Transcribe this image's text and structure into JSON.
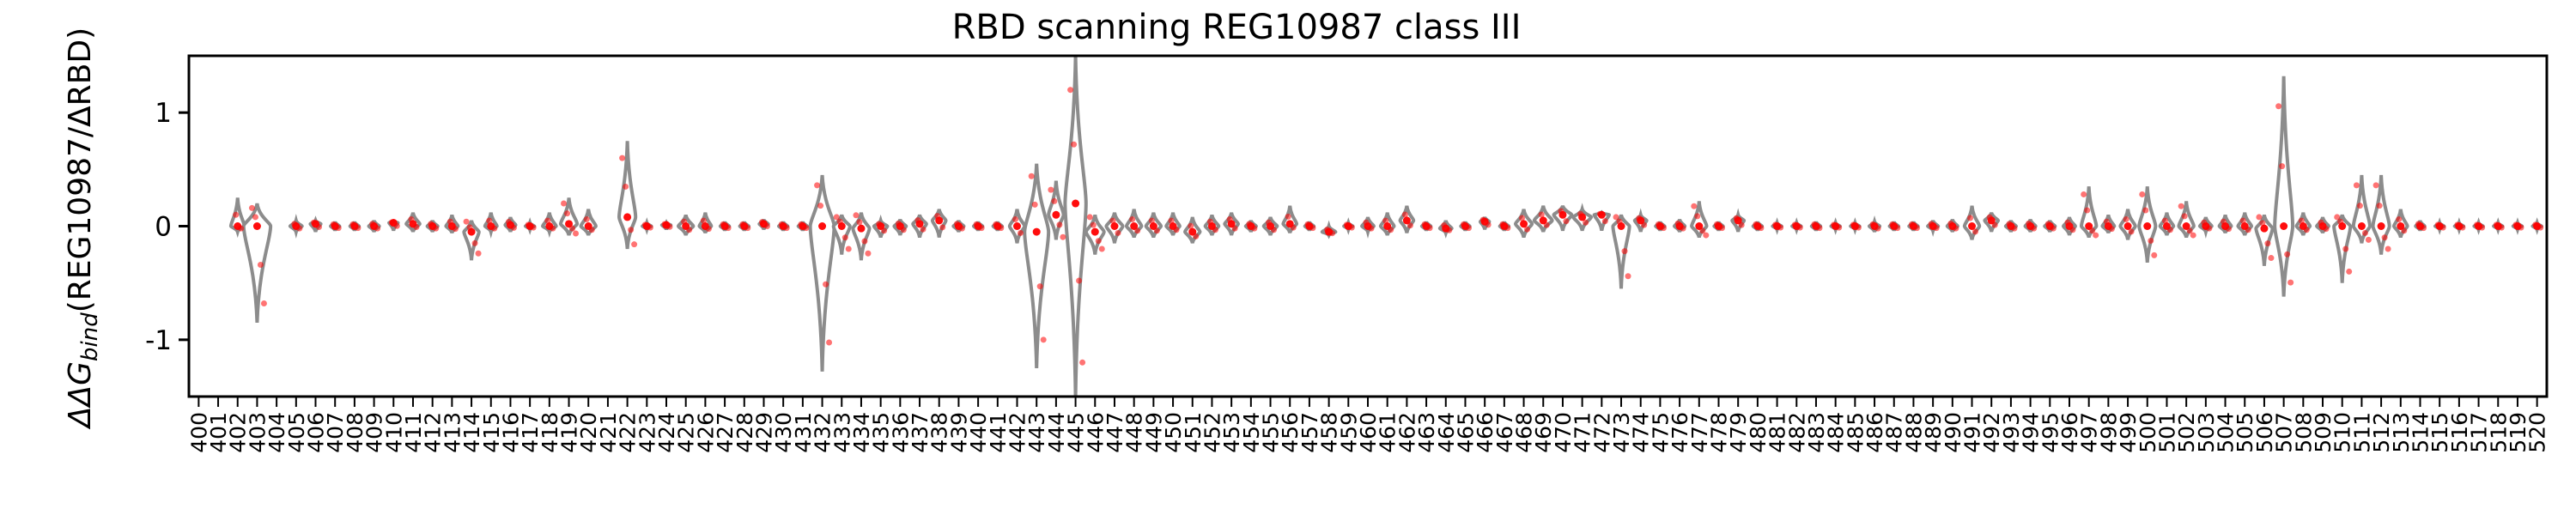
{
  "chart_data": {
    "type": "violin",
    "title": "RBD scanning REG10987 class III",
    "ylabel_prefix": "ΔΔG",
    "ylabel_sub": "bind",
    "ylabel_suffix": "(REG10987/ΔRBD)",
    "ylim": [
      -1.5,
      1.5
    ],
    "yticks": [
      -1,
      0,
      1
    ],
    "x_start": 400,
    "x_end": 520,
    "violin_color": "#8c8c8c",
    "point_color": "#ff0000",
    "sites": [
      {
        "site": 402,
        "min": -0.05,
        "max": 0.25,
        "center": 0.0,
        "width": 0.45
      },
      {
        "site": 403,
        "min": -0.85,
        "max": 0.2,
        "center": 0.0,
        "width": 0.9
      },
      {
        "site": 405,
        "min": -0.05,
        "max": 0.05,
        "center": 0.0,
        "width": 0.4
      },
      {
        "site": 406,
        "min": -0.05,
        "max": 0.05,
        "center": 0.02,
        "width": 0.35
      },
      {
        "site": 407,
        "min": -0.04,
        "max": 0.04,
        "center": 0.0,
        "width": 0.3
      },
      {
        "site": 408,
        "min": -0.04,
        "max": 0.04,
        "center": 0.0,
        "width": 0.3
      },
      {
        "site": 409,
        "min": -0.05,
        "max": 0.05,
        "center": 0.0,
        "width": 0.35
      },
      {
        "site": 410,
        "min": -0.04,
        "max": 0.04,
        "center": 0.03,
        "width": 0.3
      },
      {
        "site": 411,
        "min": -0.05,
        "max": 0.12,
        "center": 0.02,
        "width": 0.45
      },
      {
        "site": 412,
        "min": -0.05,
        "max": 0.05,
        "center": 0.0,
        "width": 0.35
      },
      {
        "site": 413,
        "min": -0.06,
        "max": 0.1,
        "center": 0.0,
        "width": 0.4
      },
      {
        "site": 414,
        "min": -0.3,
        "max": 0.05,
        "center": -0.05,
        "width": 0.5
      },
      {
        "site": 415,
        "min": -0.05,
        "max": 0.12,
        "center": 0.0,
        "width": 0.4
      },
      {
        "site": 416,
        "min": -0.05,
        "max": 0.08,
        "center": 0.01,
        "width": 0.35
      },
      {
        "site": 417,
        "min": -0.03,
        "max": 0.03,
        "center": 0.0,
        "width": 0.3
      },
      {
        "site": 418,
        "min": -0.05,
        "max": 0.12,
        "center": 0.0,
        "width": 0.45
      },
      {
        "site": 419,
        "min": -0.08,
        "max": 0.25,
        "center": 0.02,
        "width": 0.55
      },
      {
        "site": 420,
        "min": -0.08,
        "max": 0.15,
        "center": 0.0,
        "width": 0.5
      },
      {
        "site": 422,
        "min": -0.2,
        "max": 0.75,
        "center": 0.08,
        "width": 0.55
      },
      {
        "site": 423,
        "min": -0.03,
        "max": 0.03,
        "center": 0.0,
        "width": 0.3
      },
      {
        "site": 424,
        "min": -0.03,
        "max": 0.03,
        "center": 0.01,
        "width": 0.3
      },
      {
        "site": 425,
        "min": -0.08,
        "max": 0.1,
        "center": 0.0,
        "width": 0.5
      },
      {
        "site": 426,
        "min": -0.06,
        "max": 0.12,
        "center": 0.0,
        "width": 0.4
      },
      {
        "site": 427,
        "min": -0.04,
        "max": 0.04,
        "center": 0.0,
        "width": 0.3
      },
      {
        "site": 428,
        "min": -0.04,
        "max": 0.04,
        "center": 0.0,
        "width": 0.3
      },
      {
        "site": 429,
        "min": -0.03,
        "max": 0.06,
        "center": 0.02,
        "width": 0.3
      },
      {
        "site": 430,
        "min": -0.04,
        "max": 0.04,
        "center": 0.0,
        "width": 0.3
      },
      {
        "site": 431,
        "min": -0.04,
        "max": 0.04,
        "center": 0.0,
        "width": 0.3
      },
      {
        "site": 432,
        "min": -1.28,
        "max": 0.45,
        "center": 0.0,
        "width": 0.8
      },
      {
        "site": 433,
        "min": -0.25,
        "max": 0.1,
        "center": 0.0,
        "width": 0.55
      },
      {
        "site": 434,
        "min": -0.3,
        "max": 0.12,
        "center": -0.02,
        "width": 0.55
      },
      {
        "site": 435,
        "min": -0.1,
        "max": 0.05,
        "center": 0.0,
        "width": 0.45
      },
      {
        "site": 436,
        "min": -0.08,
        "max": 0.06,
        "center": 0.0,
        "width": 0.4
      },
      {
        "site": 437,
        "min": -0.1,
        "max": 0.1,
        "center": 0.02,
        "width": 0.45
      },
      {
        "site": 438,
        "min": -0.1,
        "max": 0.15,
        "center": 0.05,
        "width": 0.45
      },
      {
        "site": 439,
        "min": -0.05,
        "max": 0.05,
        "center": 0.0,
        "width": 0.35
      },
      {
        "site": 440,
        "min": -0.04,
        "max": 0.04,
        "center": 0.0,
        "width": 0.3
      },
      {
        "site": 441,
        "min": -0.04,
        "max": 0.04,
        "center": 0.0,
        "width": 0.3
      },
      {
        "site": 442,
        "min": -0.15,
        "max": 0.15,
        "center": 0.0,
        "width": 0.5
      },
      {
        "site": 443,
        "min": -1.25,
        "max": 0.55,
        "center": -0.05,
        "width": 0.8
      },
      {
        "site": 444,
        "min": -0.12,
        "max": 0.4,
        "center": 0.1,
        "width": 0.5
      },
      {
        "site": 445,
        "min": -1.5,
        "max": 1.5,
        "center": 0.2,
        "width": 0.7
      },
      {
        "site": 446,
        "min": -0.25,
        "max": 0.1,
        "center": -0.05,
        "width": 0.6
      },
      {
        "site": 447,
        "min": -0.15,
        "max": 0.12,
        "center": 0.0,
        "width": 0.55
      },
      {
        "site": 448,
        "min": -0.1,
        "max": 0.15,
        "center": 0.0,
        "width": 0.5
      },
      {
        "site": 449,
        "min": -0.1,
        "max": 0.12,
        "center": 0.0,
        "width": 0.5
      },
      {
        "site": 450,
        "min": -0.08,
        "max": 0.12,
        "center": 0.0,
        "width": 0.45
      },
      {
        "site": 451,
        "min": -0.15,
        "max": 0.08,
        "center": -0.05,
        "width": 0.5
      },
      {
        "site": 452,
        "min": -0.08,
        "max": 0.1,
        "center": 0.0,
        "width": 0.45
      },
      {
        "site": 453,
        "min": -0.08,
        "max": 0.12,
        "center": 0.02,
        "width": 0.45
      },
      {
        "site": 454,
        "min": -0.05,
        "max": 0.05,
        "center": 0.0,
        "width": 0.35
      },
      {
        "site": 455,
        "min": -0.08,
        "max": 0.08,
        "center": 0.0,
        "width": 0.45
      },
      {
        "site": 456,
        "min": -0.06,
        "max": 0.18,
        "center": 0.02,
        "width": 0.45
      },
      {
        "site": 457,
        "min": -0.04,
        "max": 0.04,
        "center": 0.0,
        "width": 0.3
      },
      {
        "site": 458,
        "min": -0.08,
        "max": 0.0,
        "center": -0.05,
        "width": 0.45
      },
      {
        "site": 459,
        "min": -0.03,
        "max": 0.03,
        "center": 0.0,
        "width": 0.3
      },
      {
        "site": 460,
        "min": -0.05,
        "max": 0.08,
        "center": 0.0,
        "width": 0.4
      },
      {
        "site": 461,
        "min": -0.08,
        "max": 0.12,
        "center": 0.0,
        "width": 0.45
      },
      {
        "site": 462,
        "min": -0.06,
        "max": 0.18,
        "center": 0.05,
        "width": 0.45
      },
      {
        "site": 463,
        "min": -0.04,
        "max": 0.04,
        "center": 0.0,
        "width": 0.3
      },
      {
        "site": 464,
        "min": -0.06,
        "max": 0.05,
        "center": -0.02,
        "width": 0.4
      },
      {
        "site": 465,
        "min": -0.04,
        "max": 0.04,
        "center": 0.0,
        "width": 0.3
      },
      {
        "site": 466,
        "min": -0.03,
        "max": 0.08,
        "center": 0.04,
        "width": 0.3
      },
      {
        "site": 467,
        "min": -0.04,
        "max": 0.04,
        "center": 0.0,
        "width": 0.3
      },
      {
        "site": 468,
        "min": -0.1,
        "max": 0.15,
        "center": 0.02,
        "width": 0.55
      },
      {
        "site": 469,
        "min": -0.05,
        "max": 0.18,
        "center": 0.05,
        "width": 0.6
      },
      {
        "site": 470,
        "min": -0.04,
        "max": 0.18,
        "center": 0.1,
        "width": 0.6
      },
      {
        "site": 471,
        "min": -0.04,
        "max": 0.15,
        "center": 0.08,
        "width": 0.6
      },
      {
        "site": 472,
        "min": -0.04,
        "max": 0.12,
        "center": 0.1,
        "width": 0.5
      },
      {
        "site": 473,
        "min": -0.55,
        "max": 0.1,
        "center": 0.0,
        "width": 0.55
      },
      {
        "site": 474,
        "min": -0.05,
        "max": 0.1,
        "center": 0.05,
        "width": 0.4
      },
      {
        "site": 475,
        "min": -0.04,
        "max": 0.04,
        "center": 0.0,
        "width": 0.3
      },
      {
        "site": 476,
        "min": -0.05,
        "max": 0.06,
        "center": 0.0,
        "width": 0.35
      },
      {
        "site": 477,
        "min": -0.1,
        "max": 0.22,
        "center": 0.0,
        "width": 0.5
      },
      {
        "site": 478,
        "min": -0.04,
        "max": 0.04,
        "center": 0.0,
        "width": 0.3
      },
      {
        "site": 479,
        "min": -0.05,
        "max": 0.1,
        "center": 0.05,
        "width": 0.4
      },
      {
        "site": 480,
        "min": -0.04,
        "max": 0.04,
        "center": 0.0,
        "width": 0.3
      },
      {
        "site": 481,
        "min": -0.03,
        "max": 0.03,
        "center": 0.0,
        "width": 0.3
      },
      {
        "site": 482,
        "min": -0.03,
        "max": 0.03,
        "center": 0.0,
        "width": 0.3
      },
      {
        "site": 483,
        "min": -0.04,
        "max": 0.04,
        "center": 0.0,
        "width": 0.3
      },
      {
        "site": 484,
        "min": -0.03,
        "max": 0.03,
        "center": 0.0,
        "width": 0.3
      },
      {
        "site": 485,
        "min": -0.03,
        "max": 0.03,
        "center": 0.0,
        "width": 0.3
      },
      {
        "site": 486,
        "min": -0.05,
        "max": 0.04,
        "center": 0.0,
        "width": 0.35
      },
      {
        "site": 487,
        "min": -0.04,
        "max": 0.04,
        "center": 0.0,
        "width": 0.3
      },
      {
        "site": 488,
        "min": -0.04,
        "max": 0.04,
        "center": 0.0,
        "width": 0.3
      },
      {
        "site": 489,
        "min": -0.04,
        "max": 0.05,
        "center": 0.0,
        "width": 0.35
      },
      {
        "site": 490,
        "min": -0.05,
        "max": 0.06,
        "center": 0.0,
        "width": 0.35
      },
      {
        "site": 491,
        "min": -0.12,
        "max": 0.18,
        "center": 0.0,
        "width": 0.5
      },
      {
        "site": 492,
        "min": -0.05,
        "max": 0.12,
        "center": 0.05,
        "width": 0.45
      },
      {
        "site": 493,
        "min": -0.05,
        "max": 0.05,
        "center": 0.0,
        "width": 0.35
      },
      {
        "site": 494,
        "min": -0.05,
        "max": 0.06,
        "center": 0.0,
        "width": 0.35
      },
      {
        "site": 495,
        "min": -0.05,
        "max": 0.05,
        "center": 0.0,
        "width": 0.35
      },
      {
        "site": 496,
        "min": -0.08,
        "max": 0.08,
        "center": 0.0,
        "width": 0.4
      },
      {
        "site": 497,
        "min": -0.1,
        "max": 0.35,
        "center": 0.0,
        "width": 0.5
      },
      {
        "site": 498,
        "min": -0.06,
        "max": 0.1,
        "center": 0.0,
        "width": 0.4
      },
      {
        "site": 499,
        "min": -0.12,
        "max": 0.15,
        "center": 0.0,
        "width": 0.5
      },
      {
        "site": 500,
        "min": -0.32,
        "max": 0.35,
        "center": 0.0,
        "width": 0.55
      },
      {
        "site": 501,
        "min": -0.08,
        "max": 0.12,
        "center": 0.0,
        "width": 0.45
      },
      {
        "site": 502,
        "min": -0.1,
        "max": 0.22,
        "center": 0.0,
        "width": 0.5
      },
      {
        "site": 503,
        "min": -0.05,
        "max": 0.08,
        "center": 0.0,
        "width": 0.4
      },
      {
        "site": 504,
        "min": -0.06,
        "max": 0.1,
        "center": 0.0,
        "width": 0.4
      },
      {
        "site": 505,
        "min": -0.08,
        "max": 0.12,
        "center": 0.0,
        "width": 0.45
      },
      {
        "site": 506,
        "min": -0.35,
        "max": 0.1,
        "center": -0.02,
        "width": 0.55
      },
      {
        "site": 507,
        "min": -0.62,
        "max": 1.32,
        "center": 0.0,
        "width": 0.6
      },
      {
        "site": 508,
        "min": -0.08,
        "max": 0.12,
        "center": 0.0,
        "width": 0.45
      },
      {
        "site": 509,
        "min": -0.06,
        "max": 0.08,
        "center": 0.0,
        "width": 0.4
      },
      {
        "site": 510,
        "min": -0.5,
        "max": 0.1,
        "center": 0.0,
        "width": 0.55
      },
      {
        "site": 511,
        "min": -0.15,
        "max": 0.45,
        "center": 0.0,
        "width": 0.55
      },
      {
        "site": 512,
        "min": -0.25,
        "max": 0.45,
        "center": 0.0,
        "width": 0.55
      },
      {
        "site": 513,
        "min": -0.1,
        "max": 0.15,
        "center": 0.0,
        "width": 0.45
      },
      {
        "site": 514,
        "min": -0.04,
        "max": 0.05,
        "center": 0.0,
        "width": 0.3
      },
      {
        "site": 515,
        "min": -0.03,
        "max": 0.03,
        "center": 0.0,
        "width": 0.3
      },
      {
        "site": 516,
        "min": -0.03,
        "max": 0.03,
        "center": 0.0,
        "width": 0.3
      },
      {
        "site": 517,
        "min": -0.03,
        "max": 0.03,
        "center": 0.0,
        "width": 0.3
      },
      {
        "site": 518,
        "min": -0.03,
        "max": 0.03,
        "center": 0.0,
        "width": 0.3
      },
      {
        "site": 519,
        "min": -0.03,
        "max": 0.03,
        "center": 0.0,
        "width": 0.3
      },
      {
        "site": 520,
        "min": -0.03,
        "max": 0.03,
        "center": 0.0,
        "width": 0.3
      }
    ]
  }
}
